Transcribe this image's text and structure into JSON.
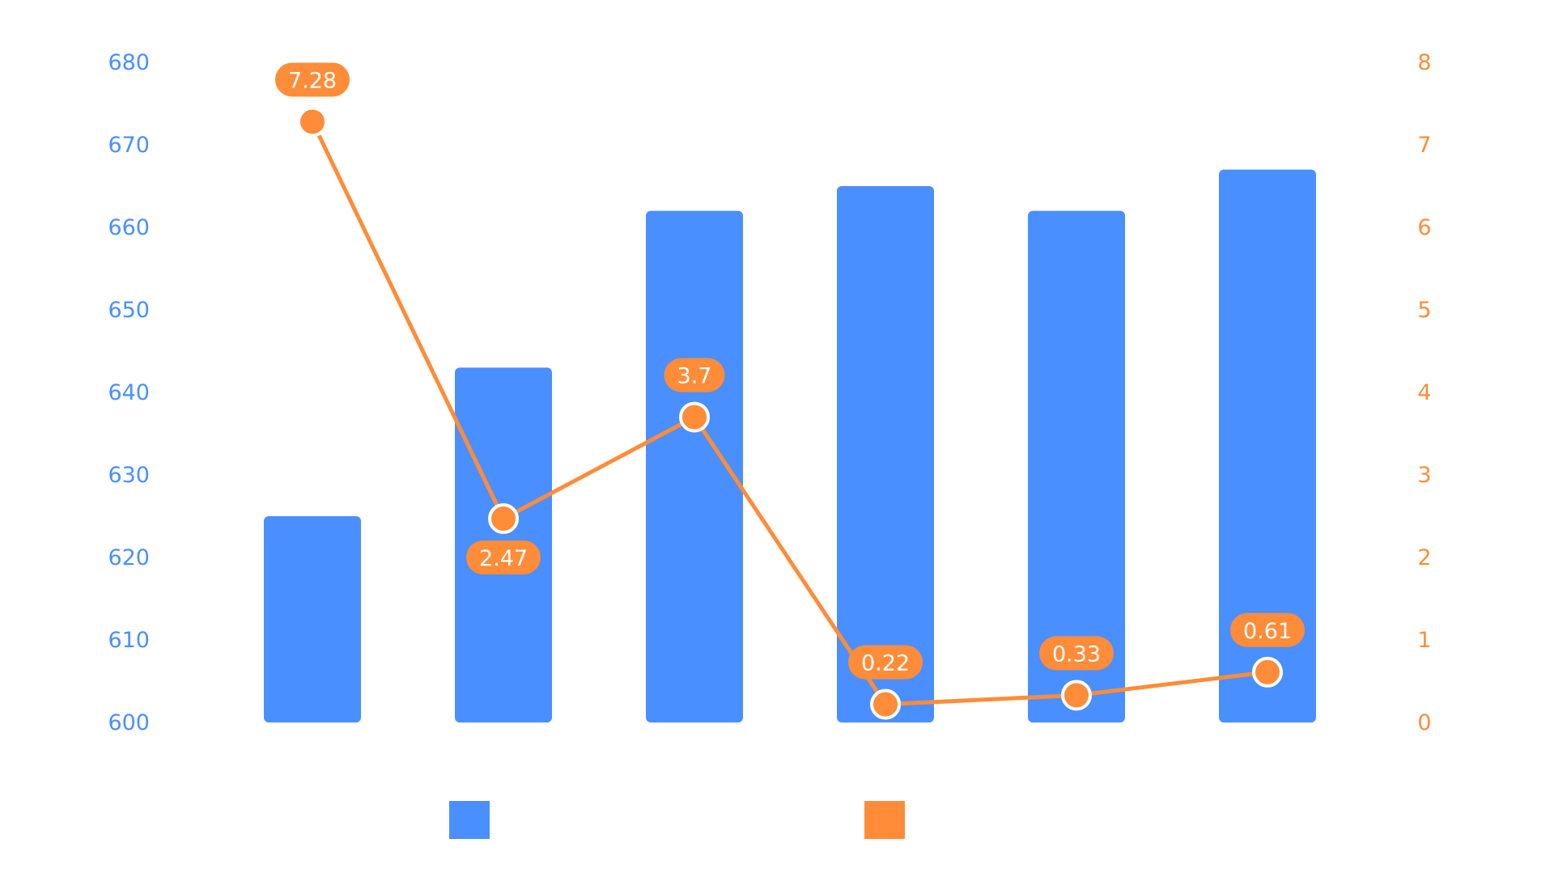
{
  "chart_data": {
    "type": "bar",
    "title": "",
    "xlabel": "",
    "categories": [
      "",
      "",
      "",
      "",
      "",
      ""
    ],
    "series": [
      {
        "type": "bar",
        "axis": "left",
        "color": "#4a8fff",
        "values": [
          625,
          643,
          662,
          665,
          662,
          667
        ]
      },
      {
        "type": "line",
        "axis": "right",
        "color": "#ff8c38",
        "values": [
          7.28,
          2.47,
          3.7,
          0.22,
          0.33,
          0.61
        ]
      }
    ],
    "y_left": {
      "ylim": [
        600,
        680
      ],
      "ticks": [
        "600",
        "610",
        "620",
        "630",
        "640",
        "650",
        "660",
        "670",
        "680"
      ],
      "color": "#4a8fff"
    },
    "y_right": {
      "ylim": [
        0,
        8
      ],
      "ticks": [
        "0",
        "1",
        "2",
        "3",
        "4",
        "5",
        "6",
        "7",
        "8"
      ],
      "color": "#ff8c38"
    },
    "data_labels": [
      "7.28",
      "2.47",
      "3.7",
      "0.22",
      "0.33",
      "0.61"
    ],
    "label_placement": [
      "above",
      "below",
      "above",
      "above",
      "above",
      "above"
    ],
    "grid": false,
    "legend": {
      "placement": "bottom",
      "entries": [
        {
          "color": "#4a8fff",
          "label": ""
        },
        {
          "color": "#ff8c38",
          "label": ""
        }
      ]
    }
  }
}
